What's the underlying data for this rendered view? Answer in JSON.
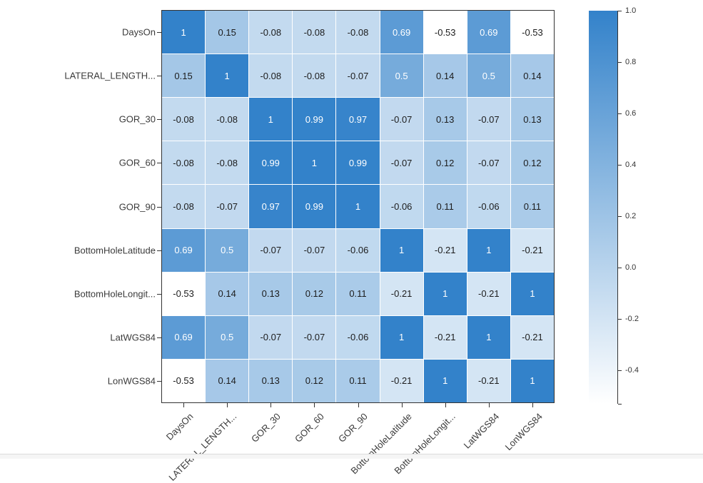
{
  "chart_data": {
    "type": "heatmap",
    "title": "",
    "rows": [
      "DaysOn",
      "LATERAL_LENGTH...",
      "GOR_30",
      "GOR_60",
      "GOR_90",
      "BottomHoleLatitude",
      "BottomHoleLongit...",
      "LatWGS84",
      "LonWGS84"
    ],
    "cols": [
      "DaysOn",
      "LATERAL_LENGTH...",
      "GOR_30",
      "GOR_60",
      "GOR_90",
      "BottomHoleLatitude",
      "BottomHoleLongit...",
      "LatWGS84",
      "LonWGS84"
    ],
    "values": [
      [
        "1",
        "0.15",
        "-0.08",
        "-0.08",
        "-0.08",
        "0.69",
        "-0.53",
        "0.69",
        "-0.53"
      ],
      [
        "0.15",
        "1",
        "-0.08",
        "-0.08",
        "-0.07",
        "0.5",
        "0.14",
        "0.5",
        "0.14"
      ],
      [
        "-0.08",
        "-0.08",
        "1",
        "0.99",
        "0.97",
        "-0.07",
        "0.13",
        "-0.07",
        "0.13"
      ],
      [
        "-0.08",
        "-0.08",
        "0.99",
        "1",
        "0.99",
        "-0.07",
        "0.12",
        "-0.07",
        "0.12"
      ],
      [
        "-0.08",
        "-0.07",
        "0.97",
        "0.99",
        "1",
        "-0.06",
        "0.11",
        "-0.06",
        "0.11"
      ],
      [
        "0.69",
        "0.5",
        "-0.07",
        "-0.07",
        "-0.06",
        "1",
        "-0.21",
        "1",
        "-0.21"
      ],
      [
        "-0.53",
        "0.14",
        "0.13",
        "0.12",
        "0.11",
        "-0.21",
        "1",
        "-0.21",
        "1"
      ],
      [
        "0.69",
        "0.5",
        "-0.07",
        "-0.07",
        "-0.06",
        "1",
        "-0.21",
        "1",
        "-0.21"
      ],
      [
        "-0.53",
        "0.14",
        "0.13",
        "0.12",
        "0.11",
        "-0.21",
        "1",
        "-0.21",
        "1"
      ]
    ],
    "color_scale": {
      "min_value": -0.53,
      "max_value": 1.0,
      "min_color": "#ffffff",
      "max_color": "#3382ca",
      "dark_text_color": "#1c1c1c",
      "light_text_color": "#ffffff"
    },
    "colorbar": {
      "tick_labels": [
        "1.0",
        "0.8",
        "0.6",
        "0.4",
        "0.2",
        "0.0",
        "-0.2",
        "-0.4"
      ],
      "tick_values": [
        1.0,
        0.8,
        0.6,
        0.4,
        0.2,
        0.0,
        -0.2,
        -0.4
      ],
      "top_value": 1.0,
      "bottom_value": -0.53,
      "legend_position": "right"
    },
    "layout": {
      "grid": "off",
      "x_tick_rotation_deg": 45
    }
  }
}
